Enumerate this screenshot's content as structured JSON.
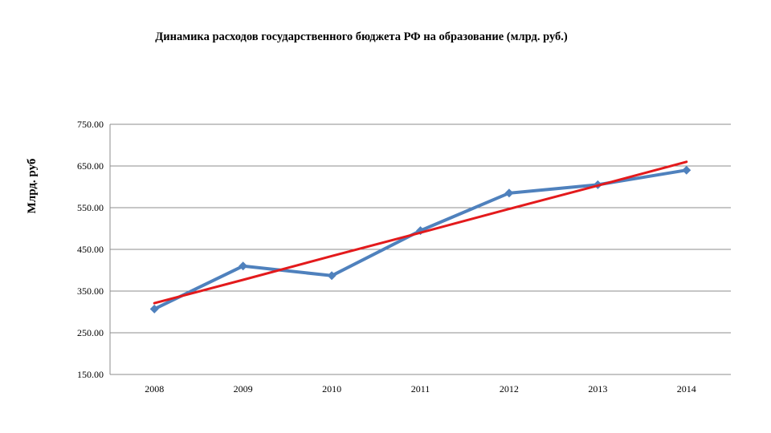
{
  "chart_data": {
    "type": "line",
    "title": "Динамика расходов государственного бюджета РФ на образование (млрд. руб.)",
    "xlabel": "",
    "ylabel": "Млрд. руб",
    "categories": [
      "2008",
      "2009",
      "2010",
      "2011",
      "2012",
      "2013",
      "2014"
    ],
    "ylim": [
      150,
      750
    ],
    "yticks": [
      "150.00",
      "250.00",
      "350.00",
      "450.00",
      "550.00",
      "650.00",
      "750.00"
    ],
    "grid": true,
    "legend": "none",
    "series": [
      {
        "values": [
          307,
          410,
          387,
          495,
          585,
          605,
          640
        ],
        "color": "#4F81BD",
        "marker": "diamond"
      },
      {
        "type": "trendline",
        "values": [
          321,
          377,
          434,
          490,
          547,
          603,
          660
        ],
        "color": "#E31A1C"
      }
    ]
  }
}
